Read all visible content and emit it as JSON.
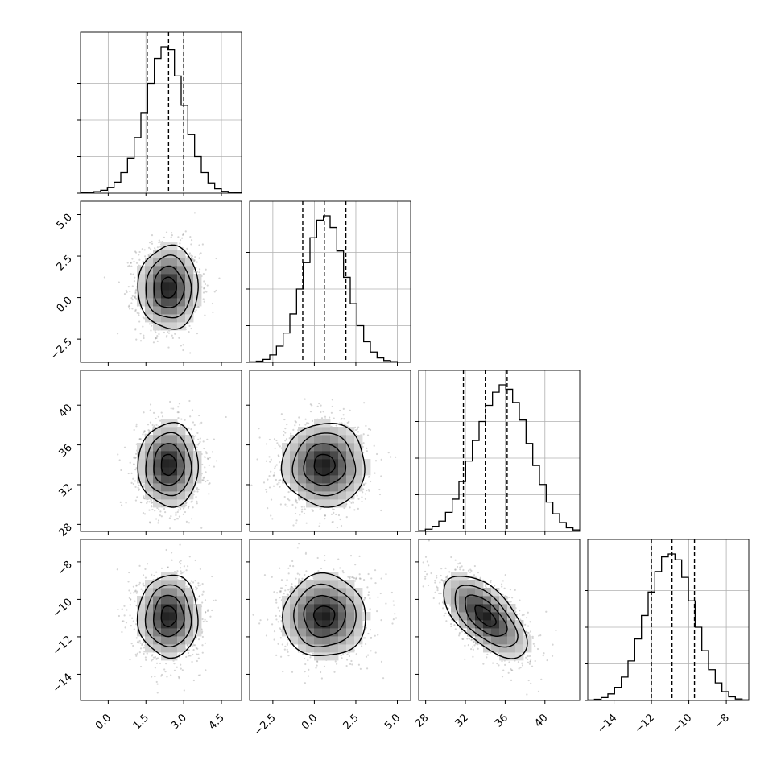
{
  "chart_data": {
    "type": "corner",
    "description_of_layout": "4x4 lower-triangular corner plot: 1D histograms on diagonal, 2D density contours below",
    "parameters": [
      {
        "index": 0,
        "mean": 2.4,
        "sd": 0.6,
        "quantiles": [
          1.55,
          2.4,
          3.0
        ],
        "range": [
          -1.1,
          5.3
        ],
        "tick_labels": [
          "0.0",
          "1.5",
          "3.0",
          "4.5"
        ],
        "ticks": [
          0.0,
          1.5,
          3.0,
          4.5
        ],
        "hist_counts": [
          0.2,
          0.5,
          1.0,
          2.0,
          4.0,
          7.5,
          14.0,
          24.0,
          38.0,
          55.0,
          75.0,
          92.0,
          100.0,
          98.0,
          80.0,
          60.0,
          40.0,
          25.0,
          14.0,
          7.0,
          3.0,
          1.2,
          0.5,
          0.2
        ]
      },
      {
        "index": 1,
        "mean": 0.6,
        "sd": 1.25,
        "quantiles": [
          -0.7,
          0.6,
          1.9
        ],
        "range": [
          -3.9,
          5.8
        ],
        "tick_labels": [
          "-2.5",
          "0.0",
          "2.5",
          "5.0"
        ],
        "ticks": [
          -2.5,
          0.0,
          2.5,
          5.0
        ],
        "hist_counts": [
          0.3,
          0.8,
          2.0,
          5.0,
          11.0,
          20.0,
          33.0,
          50.0,
          68.0,
          85.0,
          97.0,
          100.0,
          92.0,
          76.0,
          58.0,
          40.0,
          25.0,
          14.0,
          7.0,
          3.0,
          1.2,
          0.5,
          0.2,
          0.1
        ]
      },
      {
        "index": 2,
        "mean": 34.0,
        "sd": 2.1,
        "quantiles": [
          31.8,
          34.0,
          36.2
        ],
        "range": [
          27.3,
          43.5
        ],
        "tick_labels": [
          "28",
          "32",
          "36",
          "40"
        ],
        "ticks": [
          28,
          32,
          36,
          40
        ],
        "hist_counts": [
          0.5,
          1.5,
          3.5,
          7.0,
          13.0,
          22.0,
          34.0,
          48.0,
          62.0,
          75.0,
          86.0,
          95.0,
          100.0,
          97.0,
          88.0,
          76.0,
          60.0,
          45.0,
          32.0,
          20.0,
          12.0,
          6.0,
          2.5,
          1.0
        ]
      },
      {
        "index": 3,
        "mean": -10.9,
        "sd": 1.1,
        "quantiles": [
          -12.0,
          -10.9,
          -9.7
        ],
        "range": [
          -15.4,
          -6.8
        ],
        "tick_labels": [
          "-14",
          "-12",
          "-10",
          "-8"
        ],
        "ticks": [
          -14,
          -12,
          -10,
          -8
        ],
        "hist_counts": [
          0.3,
          0.8,
          2.0,
          4.5,
          9.0,
          16.0,
          27.0,
          42.0,
          58.0,
          74.0,
          88.0,
          98.0,
          100.0,
          96.0,
          84.0,
          68.0,
          50.0,
          34.0,
          21.0,
          12.0,
          6.0,
          2.5,
          1.0,
          0.4
        ]
      }
    ],
    "correlations": {
      "2-3": -0.62,
      "0-1": 0.0,
      "0-2": 0.0,
      "0-3": 0.0,
      "1-2": 0.0,
      "1-3": 0.0
    },
    "contour_levels_sigma": [
      0.5,
      1.0,
      1.5,
      2.0
    ],
    "grid": true,
    "colors": {
      "line": "#000000",
      "scatter": "#888888",
      "density": "#000000",
      "grid": "#b0b0b0"
    }
  }
}
